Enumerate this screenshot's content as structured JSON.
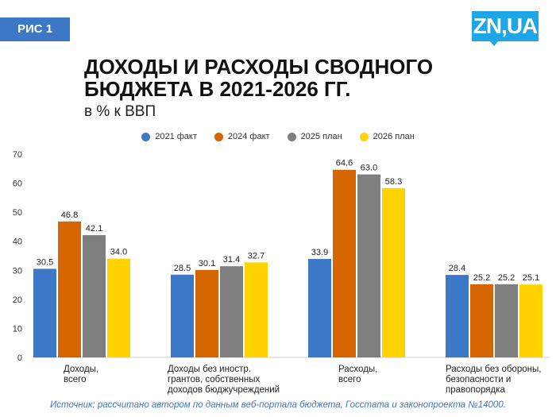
{
  "badge": "РИС 1",
  "logo": "ZN,UA",
  "chart_data": {
    "type": "bar",
    "title": "ДОХОДЫ И РАСХОДЫ СВОДНОГО БЮДЖЕТА В 2021-2026 ГГ.",
    "subtitle": "в % к ВВП",
    "categories": [
      [
        "Доходы,",
        "всего"
      ],
      [
        "Доходы без иностр.",
        "грантов, собственных",
        "доходов бюджучреждений"
      ],
      [
        "Расходы,",
        "всего"
      ],
      [
        "Расходы без обороны,",
        "безопасности и",
        "правопорядка"
      ]
    ],
    "series": [
      {
        "name": "2021 факт",
        "color": "#3d78c6",
        "values": [
          30.5,
          28.5,
          33.9,
          28.4
        ]
      },
      {
        "name": "2024 факт",
        "color": "#d46500",
        "values": [
          46.8,
          30.1,
          64.6,
          25.2
        ]
      },
      {
        "name": "2025 план",
        "color": "#7f7f7f",
        "values": [
          42.1,
          31.4,
          63.0,
          25.2
        ]
      },
      {
        "name": "2026 план",
        "color": "#ffd200",
        "values": [
          34.0,
          32.7,
          58.3,
          25.1
        ]
      }
    ],
    "ylim": [
      0,
      70
    ],
    "yticks": [
      0,
      10,
      20,
      30,
      40,
      50,
      60,
      70
    ],
    "grid": false,
    "legend": "top"
  },
  "source": "Источник: рассчитано автором по данным веб-портала бюджета, Госстата и законопроекта №14000."
}
